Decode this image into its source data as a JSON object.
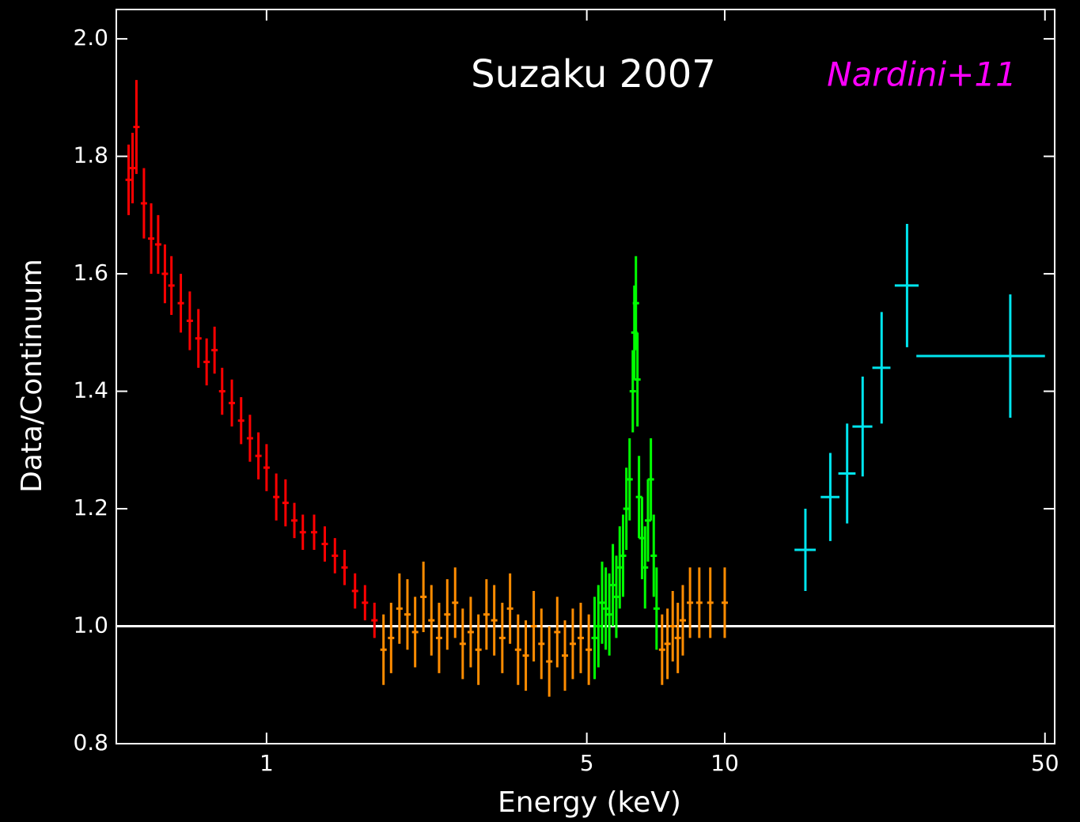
{
  "chart_data": {
    "type": "errorbar",
    "title": "Suzaku 2007",
    "annotation": "Nardini+11",
    "x_label": "Energy (keV)",
    "y_label": "Data/Continuum",
    "xscale": "log",
    "xlim": [
      0.47,
      52.5
    ],
    "ylim": [
      0.8,
      2.05
    ],
    "xticks": [
      1,
      5,
      10,
      50
    ],
    "yticks": [
      0.8,
      {
        "value": 1.0,
        "label": "1.0"
      },
      1.2,
      1.4,
      1.6,
      1.8,
      {
        "value": 2.0,
        "label": "2.0"
      }
    ],
    "hline": 1,
    "hline_color": "#ffffff",
    "series": [
      {
        "color": "#ff0000",
        "x": [
          0.5,
          0.51,
          0.52,
          0.54,
          0.56,
          0.58,
          0.6,
          0.62,
          0.65,
          0.68,
          0.71,
          0.74,
          0.77,
          0.8,
          0.84,
          0.88,
          0.92,
          0.96,
          1.0,
          1.05,
          1.1,
          1.15,
          1.2,
          1.27,
          1.34,
          1.41,
          1.48,
          1.56,
          1.64,
          1.72
        ],
        "values": [
          1.76,
          1.78,
          1.85,
          1.72,
          1.66,
          1.65,
          1.6,
          1.58,
          1.55,
          1.52,
          1.49,
          1.45,
          1.47,
          1.4,
          1.38,
          1.35,
          1.32,
          1.29,
          1.27,
          1.22,
          1.21,
          1.18,
          1.16,
          1.16,
          1.14,
          1.12,
          1.1,
          1.06,
          1.04,
          1.01
        ],
        "errors": [
          0.06,
          0.06,
          0.08,
          0.06,
          0.06,
          0.05,
          0.05,
          0.05,
          0.05,
          0.05,
          0.05,
          0.04,
          0.04,
          0.04,
          0.04,
          0.04,
          0.04,
          0.04,
          0.04,
          0.04,
          0.04,
          0.03,
          0.03,
          0.03,
          0.03,
          0.03,
          0.03,
          0.03,
          0.03,
          0.03
        ]
      },
      {
        "color": "#ff8c00",
        "x": [
          1.8,
          1.87,
          1.95,
          2.03,
          2.11,
          2.2,
          2.29,
          2.38,
          2.48,
          2.58,
          2.68,
          2.79,
          2.9,
          3.02,
          3.14,
          3.27,
          3.4,
          3.54,
          3.68,
          3.83,
          3.98,
          4.14,
          4.31,
          4.48,
          4.66,
          4.85,
          5.05,
          7.3,
          7.5,
          7.7,
          7.9,
          8.1,
          8.4,
          8.8,
          9.3,
          10.0
        ],
        "values": [
          0.96,
          0.98,
          1.03,
          1.02,
          0.99,
          1.05,
          1.01,
          0.98,
          1.02,
          1.04,
          0.97,
          0.99,
          0.96,
          1.02,
          1.01,
          0.98,
          1.03,
          0.96,
          0.95,
          1.0,
          0.97,
          0.94,
          0.99,
          0.95,
          0.97,
          0.98,
          0.96,
          0.96,
          0.97,
          1.0,
          0.98,
          1.01,
          1.04,
          1.04,
          1.04,
          1.04
        ],
        "errors": [
          0.06,
          0.06,
          0.06,
          0.06,
          0.06,
          0.06,
          0.06,
          0.06,
          0.06,
          0.06,
          0.06,
          0.06,
          0.06,
          0.06,
          0.06,
          0.06,
          0.06,
          0.06,
          0.06,
          0.06,
          0.06,
          0.06,
          0.06,
          0.06,
          0.06,
          0.06,
          0.06,
          0.06,
          0.06,
          0.06,
          0.06,
          0.06,
          0.06,
          0.06,
          0.06,
          0.06
        ]
      },
      {
        "color": "#00ff00",
        "x": [
          5.2,
          5.3,
          5.4,
          5.5,
          5.6,
          5.7,
          5.8,
          5.9,
          6.0,
          6.1,
          6.2,
          6.3,
          6.35,
          6.4,
          6.45,
          6.5,
          6.6,
          6.7,
          6.8,
          6.9,
          7.0,
          7.1
        ],
        "values": [
          0.98,
          1.0,
          1.04,
          1.03,
          1.02,
          1.07,
          1.05,
          1.1,
          1.12,
          1.2,
          1.25,
          1.4,
          1.5,
          1.55,
          1.42,
          1.22,
          1.15,
          1.1,
          1.18,
          1.25,
          1.12,
          1.03
        ],
        "errors": [
          0.07,
          0.07,
          0.07,
          0.07,
          0.07,
          0.07,
          0.07,
          0.07,
          0.07,
          0.07,
          0.07,
          0.07,
          0.08,
          0.08,
          0.08,
          0.07,
          0.07,
          0.07,
          0.07,
          0.07,
          0.07,
          0.07
        ]
      },
      {
        "color": "#00e5ee",
        "x": [
          15,
          17,
          18.5,
          20,
          22,
          25,
          42
        ],
        "xerr": [
          [
            0.8,
            0.8
          ],
          [
            0.8,
            0.8
          ],
          [
            0.8,
            0.8
          ],
          [
            1,
            1
          ],
          [
            1,
            1
          ],
          [
            1.5,
            1.5
          ],
          [
            15.8,
            8
          ]
        ],
        "values": [
          1.13,
          1.22,
          1.26,
          1.34,
          1.44,
          1.58,
          1.46
        ],
        "errors": [
          0.07,
          0.075,
          0.085,
          0.085,
          0.095,
          0.105,
          0.105
        ]
      }
    ]
  }
}
